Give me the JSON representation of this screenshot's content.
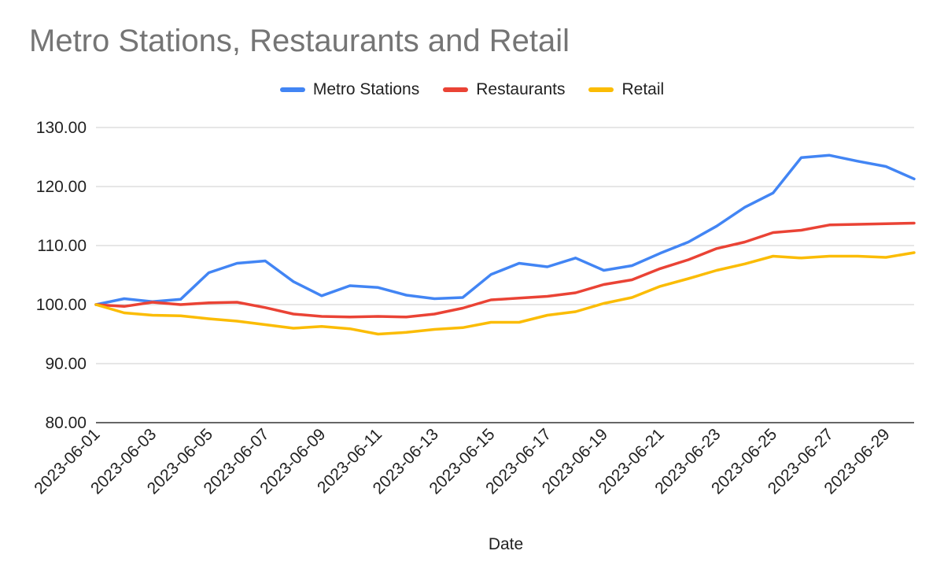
{
  "chart_data": {
    "type": "line",
    "title": "Metro Stations, Restaurants and Retail",
    "xlabel": "Date",
    "ylabel": "",
    "ylim": [
      80,
      130
    ],
    "yticks": [
      "80.00",
      "90.00",
      "100.00",
      "110.00",
      "120.00",
      "130.00"
    ],
    "grid": true,
    "legend_position": "top-center",
    "x": [
      "2023-06-01",
      "2023-06-02",
      "2023-06-03",
      "2023-06-04",
      "2023-06-05",
      "2023-06-06",
      "2023-06-07",
      "2023-06-08",
      "2023-06-09",
      "2023-06-10",
      "2023-06-11",
      "2023-06-12",
      "2023-06-13",
      "2023-06-14",
      "2023-06-15",
      "2023-06-16",
      "2023-06-17",
      "2023-06-18",
      "2023-06-19",
      "2023-06-20",
      "2023-06-21",
      "2023-06-22",
      "2023-06-23",
      "2023-06-24",
      "2023-06-25",
      "2023-06-26",
      "2023-06-27",
      "2023-06-28",
      "2023-06-29",
      "2023-06-30"
    ],
    "xtick_labels": [
      "2023-06-01",
      "2023-06-03",
      "2023-06-05",
      "2023-06-07",
      "2023-06-09",
      "2023-06-11",
      "2023-06-13",
      "2023-06-15",
      "2023-06-17",
      "2023-06-19",
      "2023-06-21",
      "2023-06-23",
      "2023-06-25",
      "2023-06-27",
      "2023-06-29"
    ],
    "series": [
      {
        "name": "Metro Stations",
        "color": "#4285f4",
        "values": [
          100.0,
          101.0,
          100.5,
          100.9,
          105.4,
          107.0,
          107.4,
          103.9,
          101.5,
          103.2,
          102.9,
          101.6,
          101.0,
          101.2,
          105.1,
          107.0,
          106.4,
          107.9,
          105.8,
          106.6,
          108.7,
          110.6,
          113.3,
          116.5,
          118.9,
          124.9,
          125.3,
          124.3,
          123.4,
          121.3
        ]
      },
      {
        "name": "Restaurants",
        "color": "#ea4335",
        "values": [
          100.0,
          99.7,
          100.4,
          100.0,
          100.3,
          100.4,
          99.5,
          98.4,
          98.0,
          97.9,
          98.0,
          97.9,
          98.4,
          99.4,
          100.8,
          101.1,
          101.4,
          102.0,
          103.4,
          104.2,
          106.1,
          107.6,
          109.5,
          110.6,
          112.2,
          112.6,
          113.5,
          113.6,
          113.7,
          113.8
        ]
      },
      {
        "name": "Retail",
        "color": "#fbbc04",
        "values": [
          100.0,
          98.6,
          98.2,
          98.1,
          97.6,
          97.2,
          96.6,
          96.0,
          96.3,
          95.9,
          95.0,
          95.3,
          95.8,
          96.1,
          97.0,
          97.0,
          98.2,
          98.8,
          100.2,
          101.2,
          103.1,
          104.4,
          105.8,
          106.9,
          108.2,
          107.9,
          108.2,
          108.2,
          108.0,
          108.8
        ]
      }
    ]
  }
}
